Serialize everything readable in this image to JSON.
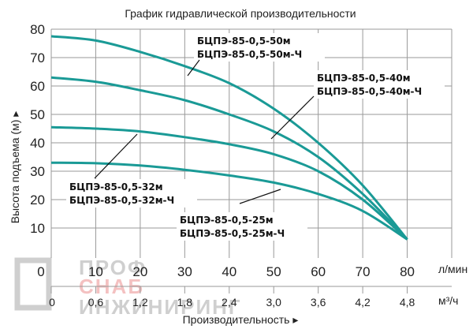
{
  "chart_data": {
    "type": "line",
    "title": "График гидравлической производительности",
    "ylabel": "Высота подъема (м) ▸",
    "xlabel": "Производительность ▸",
    "x_unit": "л/мин",
    "x2_unit": "м³/ч",
    "xlim": [
      0,
      90
    ],
    "ylim": [
      0,
      80
    ],
    "grid": true,
    "x_ticks": [
      "0",
      "10",
      "20",
      "30",
      "40",
      "50",
      "60",
      "70",
      "80"
    ],
    "x2_ticks": [
      "0",
      "0,6",
      "1,2",
      "1,8",
      "2,4",
      "3,0",
      "3,6",
      "4,2",
      "4,8"
    ],
    "y_ticks": [
      "10",
      "20",
      "30",
      "40",
      "50",
      "60",
      "70",
      "80"
    ],
    "x": [
      0,
      10,
      20,
      30,
      40,
      50,
      60,
      70,
      80
    ],
    "series": [
      {
        "name": "БЦПЭ-85-0,5-50м / БЦПЭ-85-0,5-50м-Ч",
        "label1": "БЦПЭ-85-0,5-50м",
        "label2": "БЦПЭ-85-0,5-50м-Ч",
        "values": [
          77.5,
          76,
          72,
          67,
          61,
          52,
          40,
          25,
          6
        ]
      },
      {
        "name": "БЦПЭ-85-0,5-40м / БЦПЭ-85-0,5-40м-Ч",
        "label1": "БЦПЭ-85-0,5-40м",
        "label2": "БЦПЭ-85-0,5-40м-Ч",
        "values": [
          63,
          61.5,
          58.5,
          55,
          50,
          44,
          35,
          22,
          6
        ]
      },
      {
        "name": "БЦПЭ-85-0,5-32м / БЦПЭ-85-0,5-32м-Ч",
        "label1": "БЦПЭ-85-0,5-32м",
        "label2": "БЦПЭ-85-0,5-32м-Ч",
        "values": [
          45.5,
          45,
          44,
          42,
          39.5,
          36,
          30,
          20,
          6
        ]
      },
      {
        "name": "БЦПЭ-85-0,5-25м / БЦПЭ-85-0,5-25м-Ч",
        "label1": "БЦПЭ-85-0,5-25м",
        "label2": "БЦПЭ-85-0,5-25м-Ч",
        "values": [
          33,
          32.8,
          32,
          30.5,
          28.5,
          26,
          22,
          16,
          6
        ]
      }
    ],
    "line_color": "#1a9a96"
  },
  "watermark": {
    "line1": "ПРОФ",
    "line2": "СНАБ",
    "line3": "ИНЖИНИРИНГ"
  }
}
